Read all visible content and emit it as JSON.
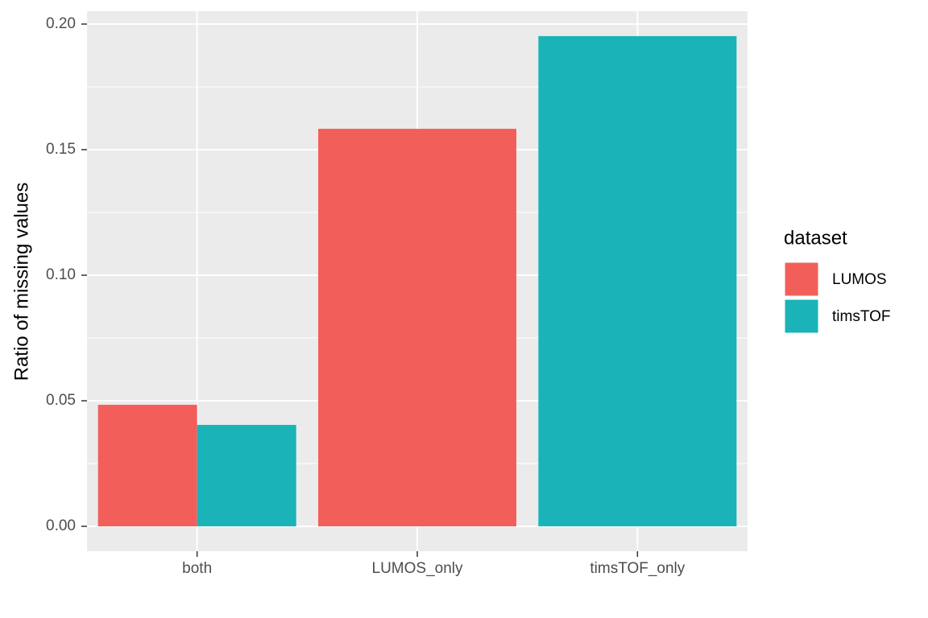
{
  "chart_data": {
    "type": "bar",
    "y_label": "Ratio of missing values",
    "categories": [
      "both",
      "LUMOS_only",
      "timsTOF_only"
    ],
    "series": [
      {
        "name": "LUMOS",
        "color": "#f25f5a",
        "values": [
          0.0484,
          0.1583,
          null
        ]
      },
      {
        "name": "timsTOF",
        "color": "#1ab3b7",
        "values": [
          0.0404,
          null,
          0.1952
        ]
      }
    ],
    "legend_title": "dataset",
    "legend_position": "right",
    "ylim": [
      -0.0099,
      0.2051
    ],
    "yticks": [
      {
        "value": 0,
        "label": "0.00"
      },
      0.05,
      {
        "value": 0.1,
        "label": "0.10"
      },
      0.15,
      {
        "value": 0.2,
        "label": "0.20"
      }
    ],
    "grid": true
  }
}
